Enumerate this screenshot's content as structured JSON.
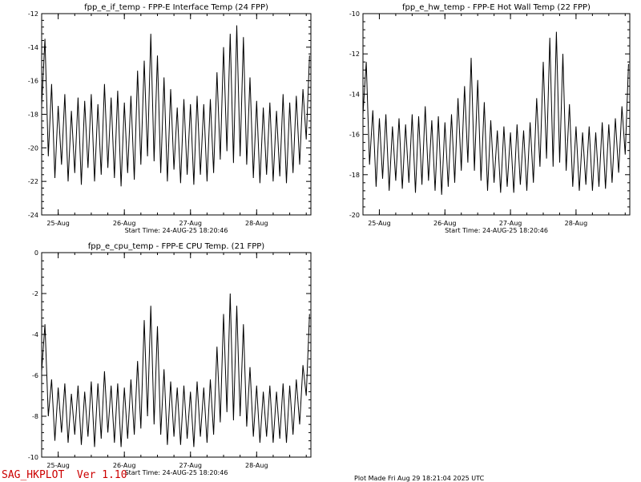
{
  "chart_data": [
    {
      "type": "line",
      "title": "fpp_e_if_temp - FPP-E Interface Temp (24 FPP)",
      "subtitle": "Start Time: 24-AUG-25  18:20:46",
      "ylim": [
        -24,
        -12
      ],
      "yticks": [
        -24,
        -22,
        -20,
        -18,
        -16,
        -14,
        -12
      ],
      "xlim": [
        0,
        4.07
      ],
      "xticks": [
        {
          "x": 0.25,
          "label": "25-Aug"
        },
        {
          "x": 1.25,
          "label": "26-Aug"
        },
        {
          "x": 2.25,
          "label": "27-Aug"
        },
        {
          "x": 3.25,
          "label": "28-Aug"
        }
      ],
      "series": [
        {
          "x": [
            0.0,
            0.05,
            0.1,
            0.15,
            0.2,
            0.25,
            0.3,
            0.35,
            0.4,
            0.45,
            0.5,
            0.55,
            0.6,
            0.65,
            0.7,
            0.75,
            0.8,
            0.85,
            0.9,
            0.95,
            1.0,
            1.05,
            1.1,
            1.15,
            1.2,
            1.25,
            1.3,
            1.35,
            1.4,
            1.45,
            1.5,
            1.55,
            1.6,
            1.65,
            1.7,
            1.75,
            1.8,
            1.85,
            1.9,
            1.95,
            2.0,
            2.05,
            2.1,
            2.15,
            2.2,
            2.25,
            2.3,
            2.35,
            2.4,
            2.45,
            2.5,
            2.55,
            2.6,
            2.65,
            2.7,
            2.75,
            2.8,
            2.85,
            2.9,
            2.95,
            3.0,
            3.05,
            3.1,
            3.15,
            3.2,
            3.25,
            3.3,
            3.35,
            3.4,
            3.45,
            3.5,
            3.55,
            3.6,
            3.65,
            3.7,
            3.75,
            3.8,
            3.85,
            3.9,
            3.95,
            4.0,
            4.05
          ],
          "y": [
            -17.5,
            -13.5,
            -20.5,
            -16.2,
            -21.8,
            -17.5,
            -21.0,
            -16.8,
            -22.0,
            -17.8,
            -21.5,
            -17.0,
            -22.2,
            -17.2,
            -21.2,
            -16.8,
            -22.0,
            -17.4,
            -21.6,
            -16.2,
            -21.2,
            -17.0,
            -21.8,
            -16.6,
            -22.3,
            -17.3,
            -21.5,
            -16.9,
            -21.9,
            -15.4,
            -21.0,
            -14.8,
            -20.5,
            -13.2,
            -20.8,
            -14.5,
            -21.5,
            -15.8,
            -22.0,
            -16.5,
            -21.3,
            -17.6,
            -22.1,
            -17.1,
            -21.6,
            -17.4,
            -22.2,
            -16.9,
            -21.6,
            -17.4,
            -22.0,
            -17.1,
            -21.5,
            -15.5,
            -20.7,
            -14.0,
            -20.2,
            -13.2,
            -20.9,
            -12.7,
            -20.5,
            -13.4,
            -21.0,
            -15.8,
            -21.8,
            -17.2,
            -22.1,
            -17.6,
            -21.6,
            -17.3,
            -22.0,
            -17.8,
            -21.7,
            -16.8,
            -22.1,
            -17.3,
            -21.5,
            -16.9,
            -21.0,
            -16.5,
            -19.5,
            -14.5
          ]
        }
      ]
    },
    {
      "type": "line",
      "title": "fpp_e_hw_temp - FPP-E Hot Wall Temp (22 FPP)",
      "subtitle": "Start Time: 24-AUG-25  18:20:46",
      "ylim": [
        -20,
        -10
      ],
      "yticks": [
        -20,
        -18,
        -16,
        -14,
        -12,
        -10
      ],
      "xlim": [
        0,
        4.07
      ],
      "xticks": [
        {
          "x": 0.25,
          "label": "25-Aug"
        },
        {
          "x": 1.25,
          "label": "26-Aug"
        },
        {
          "x": 2.25,
          "label": "27-Aug"
        },
        {
          "x": 3.25,
          "label": "28-Aug"
        }
      ],
      "series": [
        {
          "x": [
            0.0,
            0.05,
            0.1,
            0.15,
            0.2,
            0.25,
            0.3,
            0.35,
            0.4,
            0.45,
            0.5,
            0.55,
            0.6,
            0.65,
            0.7,
            0.75,
            0.8,
            0.85,
            0.9,
            0.95,
            1.0,
            1.05,
            1.1,
            1.15,
            1.2,
            1.25,
            1.3,
            1.35,
            1.4,
            1.45,
            1.5,
            1.55,
            1.6,
            1.65,
            1.7,
            1.75,
            1.8,
            1.85,
            1.9,
            1.95,
            2.0,
            2.05,
            2.1,
            2.15,
            2.2,
            2.25,
            2.3,
            2.35,
            2.4,
            2.45,
            2.5,
            2.55,
            2.6,
            2.65,
            2.7,
            2.75,
            2.8,
            2.85,
            2.9,
            2.95,
            3.0,
            3.05,
            3.1,
            3.15,
            3.2,
            3.25,
            3.3,
            3.35,
            3.4,
            3.45,
            3.5,
            3.55,
            3.6,
            3.65,
            3.7,
            3.75,
            3.8,
            3.85,
            3.9,
            3.95,
            4.0,
            4.05
          ],
          "y": [
            -15.0,
            -12.4,
            -17.5,
            -14.8,
            -18.6,
            -15.2,
            -18.2,
            -15.0,
            -18.8,
            -15.6,
            -18.3,
            -15.2,
            -18.7,
            -15.5,
            -18.4,
            -15.0,
            -18.9,
            -15.1,
            -18.5,
            -14.6,
            -18.3,
            -15.3,
            -18.8,
            -15.1,
            -19.0,
            -15.4,
            -18.6,
            -15.0,
            -18.4,
            -14.2,
            -17.8,
            -13.6,
            -17.4,
            -12.2,
            -17.8,
            -13.3,
            -18.3,
            -14.4,
            -18.8,
            -15.3,
            -18.4,
            -15.8,
            -18.9,
            -15.6,
            -18.6,
            -15.9,
            -18.9,
            -15.5,
            -18.5,
            -15.8,
            -18.8,
            -15.4,
            -18.4,
            -14.2,
            -17.6,
            -12.4,
            -17.2,
            -11.2,
            -17.6,
            -10.9,
            -17.4,
            -12.0,
            -17.8,
            -14.5,
            -18.6,
            -15.6,
            -18.8,
            -15.9,
            -18.5,
            -15.6,
            -18.8,
            -15.9,
            -18.6,
            -15.4,
            -18.7,
            -15.5,
            -18.4,
            -15.2,
            -17.9,
            -14.6,
            -17.0,
            -12.5
          ]
        }
      ]
    },
    {
      "type": "line",
      "title": "fpp_e_cpu_temp - FPP-E CPU Temp. (21 FPP)",
      "subtitle": "Start Time: 24-AUG-25  18:20:46",
      "ylim": [
        -10,
        0
      ],
      "yticks": [
        -10,
        -8,
        -6,
        -4,
        -2,
        0
      ],
      "xlim": [
        0,
        4.07
      ],
      "xticks": [
        {
          "x": 0.25,
          "label": "25-Aug"
        },
        {
          "x": 1.25,
          "label": "26-Aug"
        },
        {
          "x": 2.25,
          "label": "27-Aug"
        },
        {
          "x": 3.25,
          "label": "28-Aug"
        }
      ],
      "series": [
        {
          "x": [
            0.0,
            0.05,
            0.1,
            0.15,
            0.2,
            0.25,
            0.3,
            0.35,
            0.4,
            0.45,
            0.5,
            0.55,
            0.6,
            0.65,
            0.7,
            0.75,
            0.8,
            0.85,
            0.9,
            0.95,
            1.0,
            1.05,
            1.1,
            1.15,
            1.2,
            1.25,
            1.3,
            1.35,
            1.4,
            1.45,
            1.5,
            1.55,
            1.6,
            1.65,
            1.7,
            1.75,
            1.8,
            1.85,
            1.9,
            1.95,
            2.0,
            2.05,
            2.1,
            2.15,
            2.2,
            2.25,
            2.3,
            2.35,
            2.4,
            2.45,
            2.5,
            2.55,
            2.6,
            2.65,
            2.7,
            2.75,
            2.8,
            2.85,
            2.9,
            2.95,
            3.0,
            3.05,
            3.1,
            3.15,
            3.2,
            3.25,
            3.3,
            3.35,
            3.4,
            3.45,
            3.5,
            3.55,
            3.6,
            3.65,
            3.7,
            3.75,
            3.8,
            3.85,
            3.9,
            3.95,
            4.0,
            4.05
          ],
          "y": [
            -5.8,
            -3.5,
            -8.0,
            -6.2,
            -9.2,
            -6.6,
            -8.8,
            -6.4,
            -9.3,
            -6.9,
            -8.9,
            -6.5,
            -9.4,
            -6.8,
            -9.0,
            -6.3,
            -9.5,
            -6.4,
            -9.1,
            -5.8,
            -8.8,
            -6.5,
            -9.3,
            -6.4,
            -9.5,
            -6.6,
            -9.1,
            -6.2,
            -8.9,
            -5.3,
            -8.6,
            -3.3,
            -8.0,
            -2.6,
            -8.4,
            -3.6,
            -8.9,
            -5.7,
            -9.4,
            -6.3,
            -9.0,
            -6.6,
            -9.4,
            -6.5,
            -9.1,
            -6.8,
            -9.5,
            -6.3,
            -9.0,
            -6.6,
            -9.3,
            -6.2,
            -8.9,
            -4.6,
            -8.3,
            -3.0,
            -7.8,
            -2.0,
            -8.2,
            -2.6,
            -8.0,
            -3.5,
            -8.5,
            -5.6,
            -9.0,
            -6.5,
            -9.3,
            -6.8,
            -9.0,
            -6.5,
            -9.3,
            -6.8,
            -9.1,
            -6.4,
            -9.3,
            -6.5,
            -8.9,
            -6.2,
            -8.4,
            -5.5,
            -7.0,
            -3.0
          ]
        }
      ]
    }
  ],
  "footer": {
    "program": "SAG_HKPLOT  Ver 1.10",
    "plot_made": "Plot Made Fri Aug 29 18:21:04 2025 UTC"
  }
}
